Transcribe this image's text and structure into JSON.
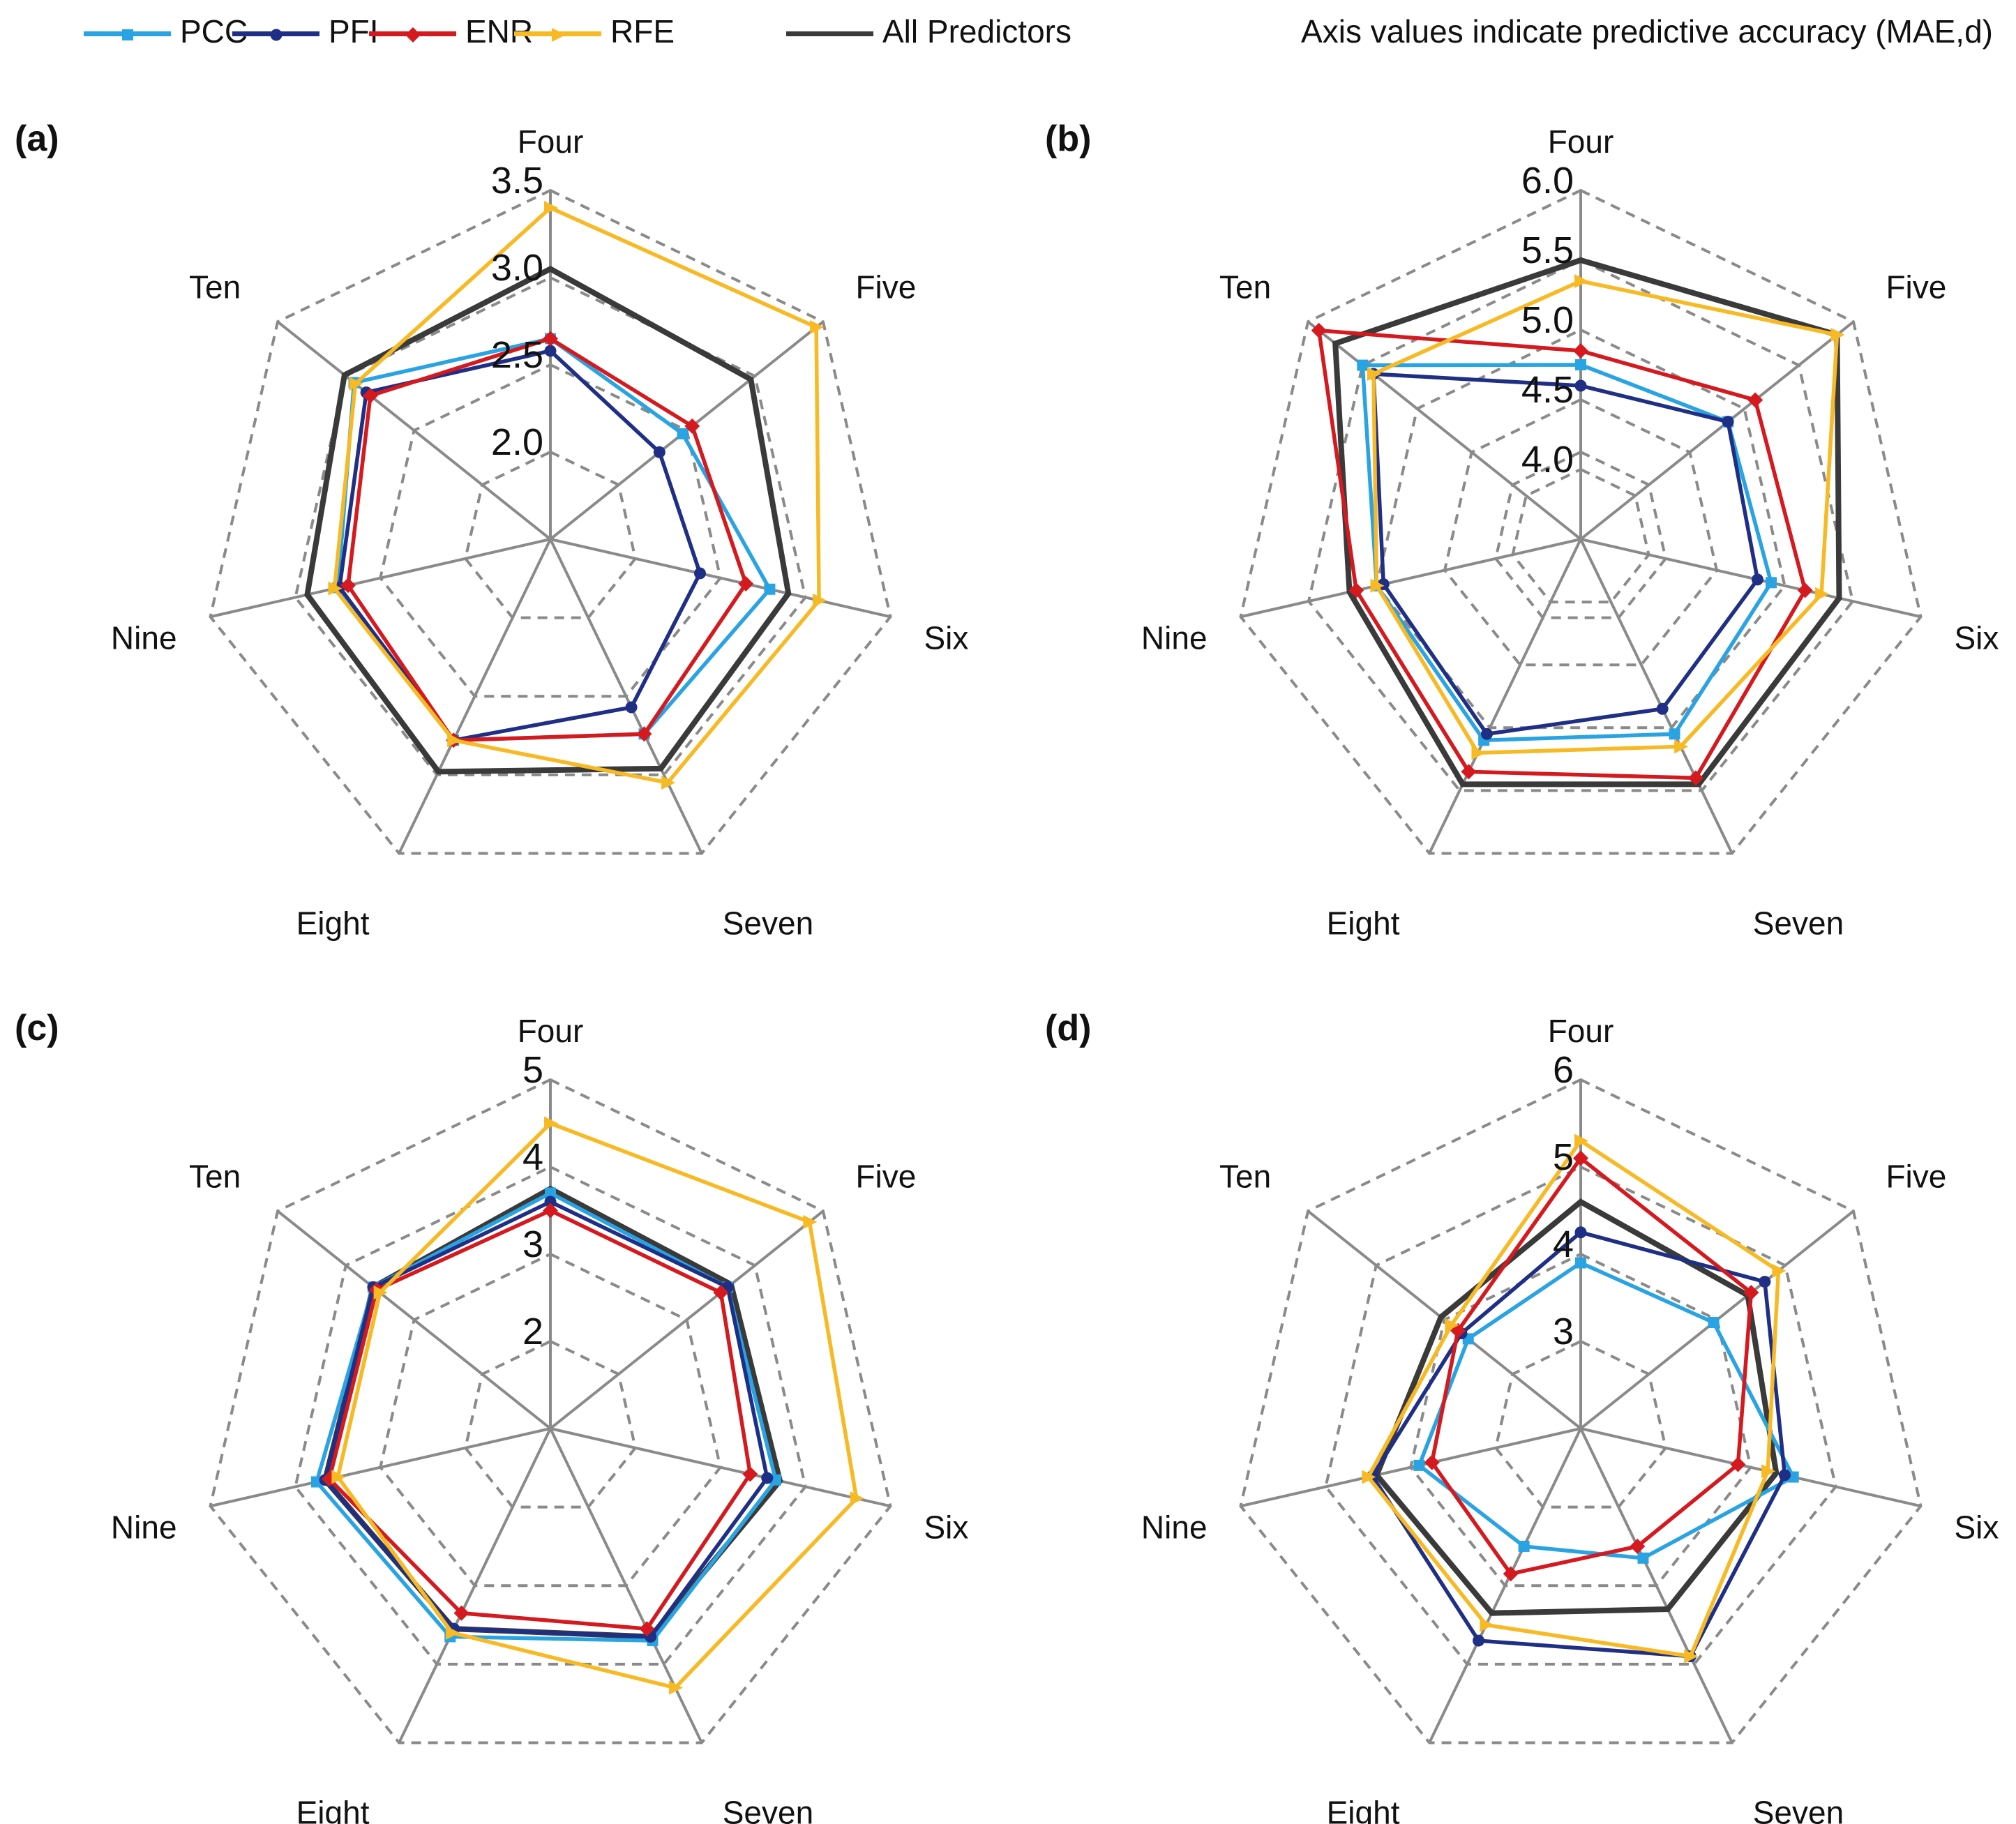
{
  "legend": {
    "series": [
      {
        "key": "PCC",
        "label": "PCC",
        "color": "#29a3e2",
        "marker": "square"
      },
      {
        "key": "PFI",
        "label": "PFI",
        "color": "#1f2f85",
        "marker": "circle"
      },
      {
        "key": "ENR",
        "label": "ENR",
        "color": "#d41a1f",
        "marker": "diamond"
      },
      {
        "key": "RFE",
        "label": "RFE",
        "color": "#f7b924",
        "marker": "triangle"
      },
      {
        "key": "All",
        "label": "All Predictors",
        "color": "#3a3a3a",
        "marker": "none"
      }
    ],
    "note": "Axis values indicate predictive accuracy (MAE,d)"
  },
  "chart_data": [
    {
      "type": "radar",
      "panel": "(a)",
      "categories": [
        "Four",
        "Five",
        "Six",
        "Seven",
        "Eight",
        "Nine",
        "Ten"
      ],
      "range": [
        1.5,
        3.5
      ],
      "ticks": [
        2.0,
        2.5,
        3.0,
        3.5
      ],
      "tick_labels": [
        "2.0",
        "2.5",
        "3.0",
        "3.5"
      ],
      "series": [
        {
          "name": "PCC",
          "values": [
            2.65,
            2.47,
            2.79,
            2.74,
            2.78,
            2.75,
            2.94
          ]
        },
        {
          "name": "PFI",
          "values": [
            2.58,
            2.3,
            2.38,
            2.57,
            2.78,
            2.74,
            2.85
          ]
        },
        {
          "name": "ENR",
          "values": [
            2.65,
            2.54,
            2.65,
            2.74,
            2.78,
            2.69,
            2.82
          ]
        },
        {
          "name": "RFE",
          "values": [
            3.4,
            3.45,
            3.08,
            3.05,
            2.78,
            2.77,
            2.93
          ]
        },
        {
          "name": "All Predictors",
          "values": [
            3.05,
            2.97,
            2.9,
            2.96,
            2.98,
            2.93,
            3.01
          ]
        }
      ]
    },
    {
      "type": "radar",
      "panel": "(b)",
      "categories": [
        "Four",
        "Five",
        "Six",
        "Seven",
        "Eight",
        "Nine",
        "Ten"
      ],
      "range": [
        3.5,
        6.0
      ],
      "ticks": [
        4.0,
        4.5,
        5.0,
        5.5,
        6.0
      ],
      "tick_labels": [
        "4.0",
        "4.5",
        "5.0",
        "5.5",
        "6.0"
      ],
      "series": [
        {
          "name": "PCC",
          "values": [
            4.75,
            4.85,
            4.9,
            5.05,
            5.1,
            5.0,
            5.5
          ]
        },
        {
          "name": "PFI",
          "values": [
            4.6,
            4.85,
            4.8,
            4.85,
            5.05,
            4.95,
            5.4
          ]
        },
        {
          "name": "ENR",
          "values": [
            4.85,
            5.1,
            5.15,
            5.4,
            5.35,
            5.15,
            5.9
          ]
        },
        {
          "name": "RFE",
          "values": [
            5.35,
            5.85,
            5.27,
            5.15,
            5.2,
            5.0,
            5.4
          ]
        },
        {
          "name": "All Predictors",
          "values": [
            5.5,
            5.85,
            5.4,
            5.45,
            5.45,
            5.2,
            5.75
          ]
        }
      ]
    },
    {
      "type": "radar",
      "panel": "(c)",
      "categories": [
        "Four",
        "Five",
        "Six",
        "Seven",
        "Eight",
        "Nine",
        "Ten"
      ],
      "range": [
        1,
        5
      ],
      "ticks": [
        2,
        3,
        4,
        5
      ],
      "tick_labels": [
        "2",
        "3",
        "4",
        "5"
      ],
      "series": [
        {
          "name": "PCC",
          "values": [
            3.7,
            3.6,
            3.65,
            3.7,
            3.65,
            3.75,
            3.6
          ]
        },
        {
          "name": "PFI",
          "values": [
            3.6,
            3.6,
            3.55,
            3.65,
            3.55,
            3.65,
            3.6
          ]
        },
        {
          "name": "ENR",
          "values": [
            3.5,
            3.5,
            3.35,
            3.55,
            3.35,
            3.6,
            3.55
          ]
        },
        {
          "name": "RFE",
          "values": [
            4.5,
            4.8,
            4.6,
            4.3,
            3.6,
            3.5,
            3.5
          ]
        },
        {
          "name": "All Predictors",
          "values": [
            3.75,
            3.65,
            3.7,
            3.65,
            3.55,
            3.65,
            3.6
          ]
        }
      ]
    },
    {
      "type": "radar",
      "panel": "(d)",
      "categories": [
        "Four",
        "Five",
        "Six",
        "Seven",
        "Eight",
        "Nine",
        "Ten"
      ],
      "range": [
        2,
        6
      ],
      "ticks": [
        3,
        4,
        5,
        6
      ],
      "tick_labels": [
        "3",
        "4",
        "5",
        "6"
      ],
      "series": [
        {
          "name": "PCC",
          "values": [
            3.9,
            3.95,
            4.5,
            3.65,
            3.5,
            3.9,
            3.65
          ]
        },
        {
          "name": "PFI",
          "values": [
            4.25,
            4.7,
            4.4,
            4.9,
            4.7,
            4.45,
            3.75
          ]
        },
        {
          "name": "ENR",
          "values": [
            5.1,
            4.5,
            3.85,
            3.5,
            3.85,
            3.75,
            3.8
          ]
        },
        {
          "name": "RFE",
          "values": [
            5.3,
            4.9,
            4.2,
            4.9,
            4.5,
            4.5,
            3.9
          ]
        },
        {
          "name": "All Predictors",
          "values": [
            4.6,
            4.45,
            4.3,
            4.3,
            4.35,
            4.4,
            4.05
          ]
        }
      ]
    }
  ]
}
